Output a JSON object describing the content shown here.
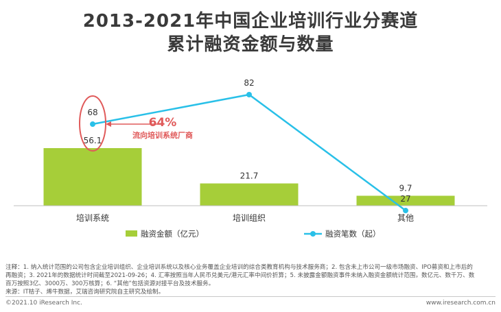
{
  "header": {
    "title_line1": "2013-2021年中国企业培训行业分赛道",
    "title_line2": "累计融资金额与数量"
  },
  "chart_data": {
    "type": "bar",
    "categories": [
      "培训系统",
      "培训组织",
      "其他"
    ],
    "series": [
      {
        "name": "融资金额（亿元）",
        "type": "bar",
        "values": [
          56.1,
          21.7,
          9.7
        ],
        "color": "#a6ce39"
      },
      {
        "name": "融资笔数（起）",
        "type": "line",
        "values": [
          68,
          82,
          27
        ],
        "color": "#29c0e8"
      }
    ],
    "annotation": {
      "value": "64%",
      "text": "流向培训系统厂商",
      "color": "#e05a5a"
    },
    "legend_position": "bottom",
    "grid": false
  },
  "notes": {
    "line1": "注释：1. 纳入统计范围的公司包含企业培训组织、企业培训系统以及核心业务覆盖企业培训的综合类教育机构与技术服务商；2. 包含未上市公司一级市场融资、IPO募资和上市后的",
    "line2": "再融资；3. 2021年的数据统计时间截至2021-09-26；4. 汇率按照当年人民币兑美元/港元汇率中间价折算；5. 未披露金额融资事件未纳入融资金额统计范围，数亿元、数千万、数",
    "line3": "百万按照3亿、3000万、300万核算；6. “其他”包括资源对接平台及技术服务。",
    "line4": "来源：IT桔子、烯牛数据，艾瑞咨询研究院自主研究及绘制。"
  },
  "footer": {
    "copyright": "©2021.10 iResearch Inc.",
    "website": "www.iresearch.com.cn"
  }
}
